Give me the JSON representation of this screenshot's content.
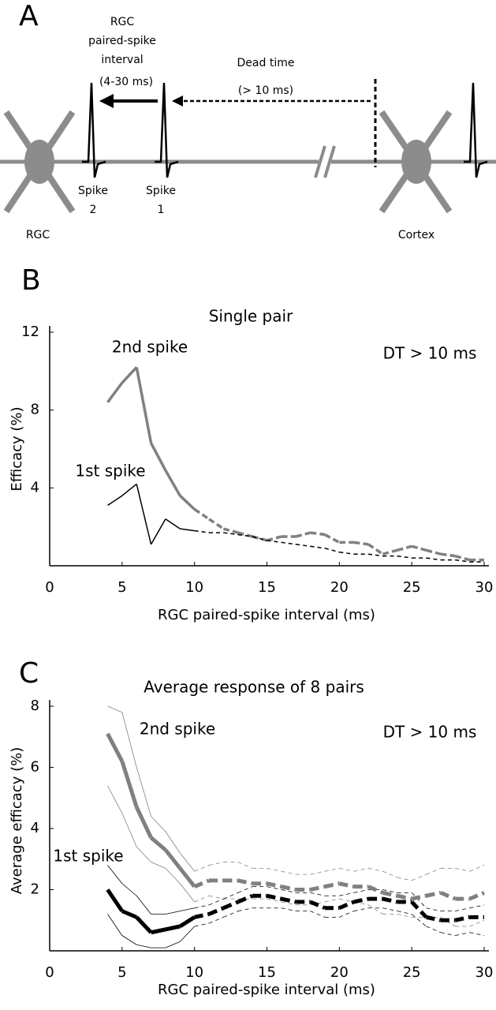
{
  "panel_a": {
    "panel_label": "A",
    "interval_label": [
      "RGC",
      "paired-spike",
      "interval"
    ],
    "interval_range": "(4-30 ms)",
    "dead_time": "Dead time",
    "dead_time_range": "(> 10 ms)",
    "spike_2": [
      "Spike",
      "2"
    ],
    "spike_1": [
      "Spike",
      "1"
    ],
    "source": "RGC",
    "target": "Cortex"
  },
  "chart_data": [
    {
      "type": "line",
      "panel_label": "B",
      "title": "Single pair",
      "xlabel": "RGC paired-spike interval (ms)",
      "ylabel": "Efficacy (%)",
      "x": [
        4,
        5,
        6,
        7,
        8,
        9,
        10,
        11,
        12,
        13,
        14,
        15,
        16,
        17,
        18,
        19,
        20,
        21,
        22,
        23,
        24,
        25,
        26,
        27,
        28,
        29,
        30
      ],
      "series": [
        {
          "color": "#808080",
          "values": [
            8.4,
            9.4,
            10.2,
            6.3,
            4.9,
            3.6,
            2.9,
            2.4,
            1.9,
            1.7,
            1.5,
            1.3,
            1.5,
            1.5,
            1.7,
            1.6,
            1.2,
            1.2,
            1.1,
            0.6,
            0.8,
            1.0,
            0.8,
            0.6,
            0.5,
            0.3,
            0.3
          ]
        },
        {
          "color": "#000000",
          "values": [
            3.1,
            3.6,
            4.2,
            1.1,
            2.4,
            1.9,
            1.8,
            1.7,
            1.7,
            1.6,
            1.5,
            1.3,
            1.2,
            1.1,
            1.0,
            0.9,
            0.7,
            0.6,
            0.6,
            0.5,
            0.5,
            0.4,
            0.4,
            0.3,
            0.3,
            0.2,
            0.2
          ]
        }
      ],
      "dashed_from_x": 10,
      "xlim": [
        0,
        30
      ],
      "ylim": [
        0,
        12
      ],
      "xticks": [
        0,
        5,
        10,
        15,
        20,
        25,
        30
      ],
      "yticks": [
        4,
        8,
        12
      ],
      "annotations": [
        "2nd spike",
        "1st spike",
        "DT > 10 ms"
      ]
    },
    {
      "type": "line",
      "panel_label": "C",
      "title": "Average response of 8 pairs",
      "xlabel": "RGC paired-spike interval (ms)",
      "ylabel": "Average efficacy (%)",
      "x": [
        4,
        5,
        6,
        7,
        8,
        9,
        10,
        11,
        12,
        13,
        14,
        15,
        16,
        17,
        18,
        19,
        20,
        21,
        22,
        23,
        24,
        25,
        26,
        27,
        28,
        29,
        30
      ],
      "series": [
        {
          "color": "#808080",
          "values": [
            8.0,
            7.8,
            6.0,
            4.4,
            3.9,
            3.2,
            2.6,
            2.8,
            2.9,
            2.9,
            2.7,
            2.7,
            2.6,
            2.5,
            2.5,
            2.6,
            2.7,
            2.6,
            2.7,
            2.6,
            2.4,
            2.3,
            2.5,
            2.7,
            2.7,
            2.6,
            2.8
          ]
        },
        {
          "color": "#808080",
          "values": [
            5.4,
            4.5,
            3.4,
            2.9,
            2.7,
            2.2,
            1.6,
            1.8,
            1.7,
            1.7,
            1.7,
            1.7,
            1.6,
            1.5,
            1.5,
            1.6,
            1.7,
            1.6,
            1.5,
            1.2,
            1.2,
            1.1,
            1.1,
            1.1,
            0.8,
            0.8,
            1.0
          ]
        },
        {
          "color": "#000000",
          "values": [
            2.8,
            2.2,
            1.8,
            1.2,
            1.2,
            1.3,
            1.4,
            1.5,
            1.7,
            1.9,
            2.1,
            2.1,
            2.0,
            1.9,
            1.9,
            1.8,
            1.8,
            1.9,
            2.0,
            2.0,
            1.9,
            1.9,
            1.4,
            1.3,
            1.3,
            1.4,
            1.5
          ]
        },
        {
          "color": "#000000",
          "values": [
            1.2,
            0.5,
            0.2,
            0.1,
            0.1,
            0.3,
            0.8,
            0.9,
            1.1,
            1.3,
            1.4,
            1.4,
            1.4,
            1.3,
            1.3,
            1.1,
            1.1,
            1.3,
            1.4,
            1.4,
            1.3,
            1.2,
            0.8,
            0.6,
            0.5,
            0.6,
            0.5
          ]
        },
        {
          "color": "#808080",
          "values": [
            7.1,
            6.2,
            4.7,
            3.7,
            3.3,
            2.7,
            2.1,
            2.3,
            2.3,
            2.3,
            2.2,
            2.2,
            2.1,
            2.0,
            2.0,
            2.1,
            2.2,
            2.1,
            2.1,
            1.9,
            1.8,
            1.7,
            1.8,
            1.9,
            1.7,
            1.7,
            1.9
          ]
        },
        {
          "color": "#000000",
          "values": [
            2.0,
            1.3,
            1.1,
            0.6,
            0.7,
            0.8,
            1.1,
            1.2,
            1.4,
            1.6,
            1.8,
            1.8,
            1.7,
            1.6,
            1.6,
            1.4,
            1.4,
            1.6,
            1.7,
            1.7,
            1.6,
            1.6,
            1.1,
            1.0,
            1.0,
            1.1,
            1.1
          ]
        }
      ],
      "dashed_from_x": 10,
      "xlim": [
        0,
        30
      ],
      "ylim": [
        0,
        8
      ],
      "xticks": [
        0,
        5,
        10,
        15,
        20,
        25,
        30
      ],
      "yticks": [
        2,
        4,
        6,
        8
      ],
      "annotations": [
        "2nd spike",
        "1st spike",
        "DT > 10 ms"
      ]
    }
  ]
}
